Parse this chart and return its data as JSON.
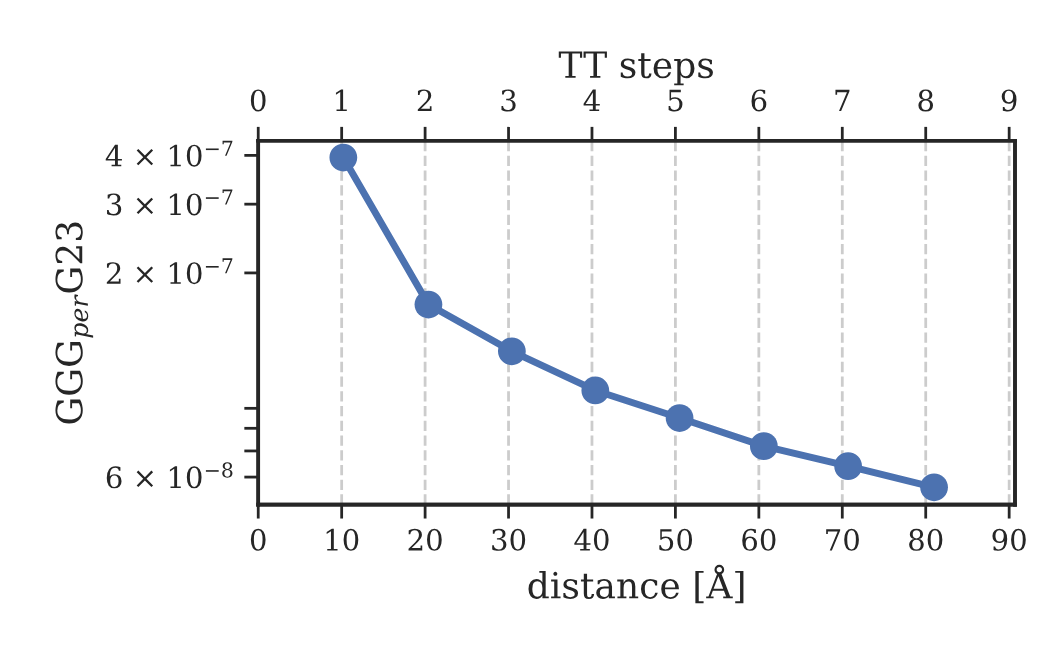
{
  "chart_data": {
    "type": "line",
    "xlabel": "distance [Å]",
    "ylabel": "GGG$_{per}$G23",
    "x2label": "TT steps",
    "x": [
      10.2,
      20.4,
      30.4,
      40.4,
      50.5,
      60.6,
      70.7,
      81.0
    ],
    "series": [
      {
        "color": "#4c72b0",
        "values": [
          3.95e-07,
          1.66e-07,
          1.26e-07,
          1e-07,
          8.5e-08,
          7.2e-08,
          6.4e-08,
          5.65e-08
        ]
      }
    ],
    "xlim": [
      0,
      90.7
    ],
    "xticks": [
      0,
      10,
      20,
      30,
      40,
      50,
      60,
      70,
      80,
      90
    ],
    "x2lim": [
      0,
      9.07
    ],
    "x2ticks": [
      0,
      1,
      2,
      3,
      4,
      5,
      6,
      7,
      8,
      9
    ],
    "log": "y",
    "ylim": [
      5.1e-08,
      4.36e-07
    ],
    "yticks": [
      {
        "value": 6e-08,
        "label": "6 × 10$^{−8}$"
      },
      {
        "value": 7e-08,
        "label": null
      },
      {
        "value": 8e-08,
        "label": null
      },
      {
        "value": 9e-08,
        "label": null
      },
      {
        "value": 2e-07,
        "label": "2 × 10$^{−7}$"
      },
      {
        "value": 3e-07,
        "label": "3 × 10$^{−7}$"
      },
      {
        "value": 4e-07,
        "label": "4 × 10$^{−7}$"
      }
    ],
    "grid": "x",
    "marker": "circle",
    "line_style": "solid",
    "legend": false
  }
}
